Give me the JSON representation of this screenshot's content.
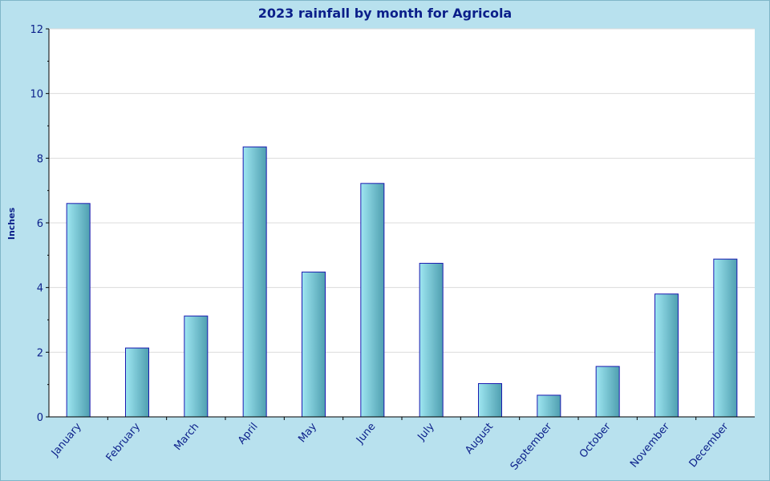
{
  "chart_data": {
    "type": "bar",
    "title": "2023 rainfall by month for Agricola",
    "xlabel": "",
    "ylabel": "Inches",
    "ylim": [
      0,
      12
    ],
    "yticks": [
      0,
      2,
      4,
      6,
      8,
      10,
      12
    ],
    "grid": true,
    "categories": [
      "January",
      "February",
      "March",
      "April",
      "May",
      "June",
      "July",
      "August",
      "September",
      "October",
      "November",
      "December"
    ],
    "values": [
      6.6,
      2.13,
      3.12,
      8.35,
      4.48,
      7.22,
      4.75,
      1.03,
      0.67,
      1.56,
      3.8,
      4.88
    ],
    "colors": {
      "background": "#b8e1ee",
      "plot_background": "#ffffff",
      "bar_light": "#9ee6f1",
      "bar_dark": "#4f9fb0",
      "bar_edge": "#1a1ab0",
      "text": "#0b1f8a"
    }
  }
}
